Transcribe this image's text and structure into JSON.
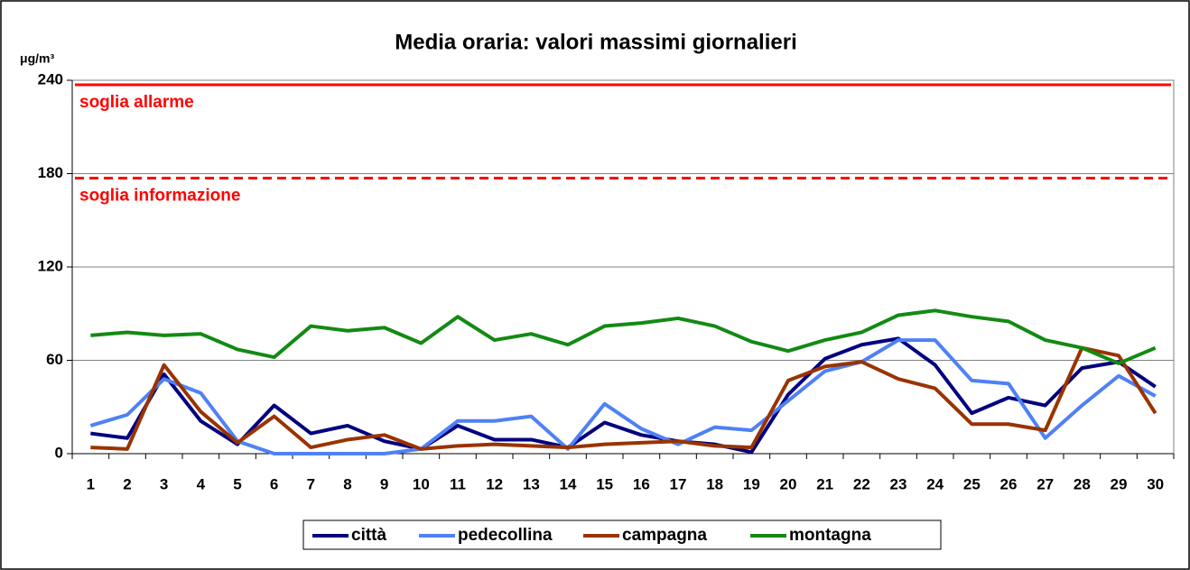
{
  "chart_data": {
    "type": "line",
    "title": "Media oraria: valori massimi giornalieri",
    "y_unit": "μg/m³",
    "categories": [
      "1",
      "2",
      "3",
      "4",
      "5",
      "6",
      "7",
      "8",
      "9",
      "10",
      "11",
      "12",
      "13",
      "14",
      "15",
      "16",
      "17",
      "18",
      "19",
      "20",
      "21",
      "22",
      "23",
      "24",
      "25",
      "26",
      "27",
      "28",
      "29",
      "30"
    ],
    "series": [
      {
        "name": "città",
        "color": "#000080",
        "values": [
          13,
          10,
          51,
          21,
          6,
          31,
          13,
          18,
          8,
          3,
          18,
          9,
          9,
          4,
          20,
          12,
          8,
          6,
          1,
          38,
          61,
          70,
          74,
          57,
          26,
          36,
          31,
          55,
          59,
          43
        ]
      },
      {
        "name": "pedecollina",
        "color": "#4f81f5",
        "values": [
          18,
          25,
          48,
          39,
          8,
          0,
          0,
          0,
          0,
          3,
          21,
          21,
          24,
          3,
          32,
          16,
          6,
          17,
          15,
          34,
          53,
          59,
          73,
          73,
          47,
          45,
          10,
          31,
          50,
          37
        ]
      },
      {
        "name": "campagna",
        "color": "#993300",
        "values": [
          4,
          3,
          57,
          27,
          7,
          24,
          4,
          9,
          12,
          3,
          5,
          6,
          5,
          4,
          6,
          7,
          8,
          5,
          4,
          47,
          56,
          59,
          48,
          42,
          19,
          19,
          15,
          68,
          63,
          26
        ]
      },
      {
        "name": "montagna",
        "color": "#138a13",
        "values": [
          76,
          78,
          76,
          77,
          67,
          62,
          82,
          79,
          81,
          71,
          88,
          73,
          77,
          70,
          82,
          84,
          87,
          82,
          72,
          66,
          73,
          78,
          89,
          92,
          88,
          85,
          73,
          68,
          58,
          68
        ]
      }
    ],
    "thresholds": [
      {
        "label": "soglia allarme",
        "value": 240,
        "color": "#ff0000",
        "style": "solid"
      },
      {
        "label": "soglia informazione",
        "value": 180,
        "color": "#ff0000",
        "style": "dashed"
      }
    ],
    "ylim": [
      0,
      240
    ],
    "yticks": [
      0,
      60,
      120,
      180,
      240
    ],
    "grid": true,
    "legend": "bottom"
  }
}
